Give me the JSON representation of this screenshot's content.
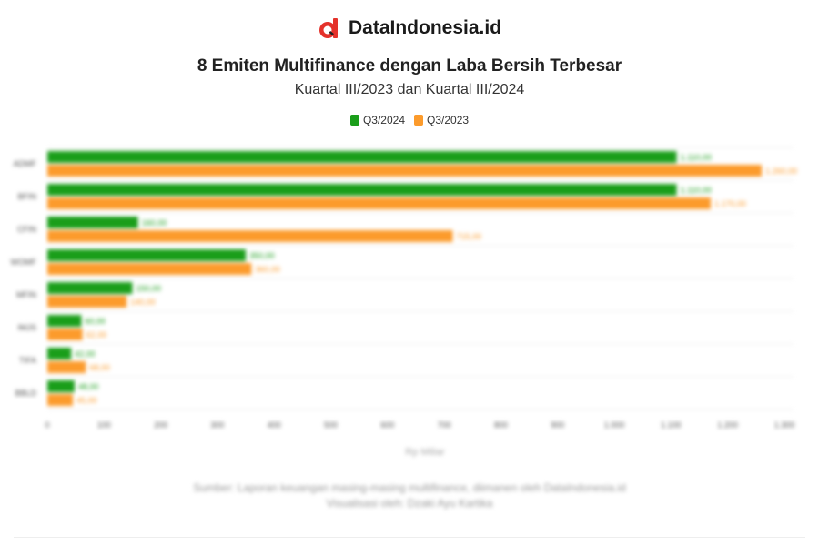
{
  "brand": {
    "name": "DataIndonesia.id",
    "logo_icon": "dataindonesia-logo-icon",
    "logo_color": "#e4322b"
  },
  "chart_data": {
    "type": "bar",
    "orientation": "horizontal",
    "title": "8 Emiten Multifinance dengan Laba Bersih Terbesar",
    "subtitle": "Kuartal III/2023 dan Kuartal III/2024",
    "categories": [
      "ADMF",
      "BFIN",
      "CFIN",
      "WOMF",
      "MFIN",
      "IMJS",
      "TIFA",
      "BBLD"
    ],
    "series": [
      {
        "name": "Q3/2024",
        "color": "#1a9e1a",
        "values": [
          1110,
          1110,
          160,
          350,
          150,
          60,
          42,
          48
        ]
      },
      {
        "name": "Q3/2023",
        "color": "#fc9b2c",
        "values": [
          1260,
          1170,
          715,
          360,
          140,
          62,
          68,
          45
        ]
      }
    ],
    "xlim": [
      0,
      1300
    ],
    "xticks": [
      0,
      100,
      200,
      300,
      400,
      500,
      600,
      700,
      800,
      900,
      1000,
      1100,
      1200,
      1300
    ],
    "xlabel": "Rp Miliar",
    "legend_position": "top",
    "grid": true
  },
  "footer": {
    "source": "Sumber: Laporan keuangan masing-masing multifinance, diimanen oleh DataIndonesia.id",
    "credit": "Visualisasi oleh: Dzaki Ayu Kartika"
  }
}
